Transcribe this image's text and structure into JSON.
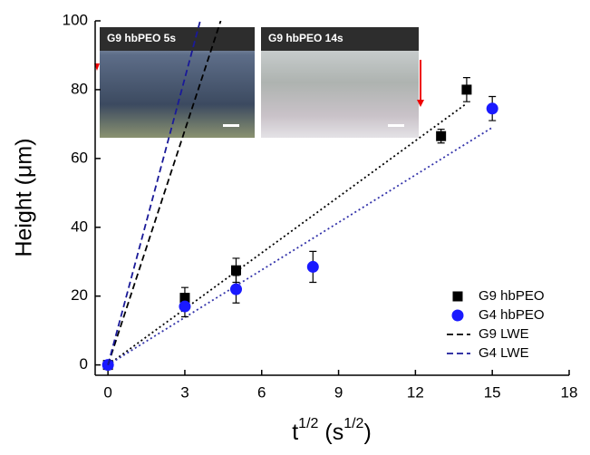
{
  "chart_data": {
    "type": "scatter",
    "x_label": [
      {
        "text": "t"
      },
      {
        "text": "1/2",
        "sup": true
      },
      {
        "text": " (s"
      },
      {
        "text": "1/2",
        "sup": true
      },
      {
        "text": ")"
      }
    ],
    "y_label": "Height (μm)",
    "xlim": [
      -0.5,
      18
    ],
    "ylim": [
      -3,
      100
    ],
    "xticks": [
      0,
      3,
      6,
      9,
      12,
      15,
      18
    ],
    "yticks": [
      0,
      20,
      40,
      60,
      80,
      100
    ],
    "series": [
      {
        "name": "G9 hbPEO",
        "color": "#000000",
        "marker": "square",
        "x": [
          0,
          3,
          5,
          13,
          14
        ],
        "values": [
          0,
          19.5,
          27.5,
          66.5,
          80
        ],
        "errors": [
          1,
          3,
          3.5,
          2,
          3.5
        ]
      },
      {
        "name": "G4 hbPEO",
        "color": "#1a1aff",
        "marker": "circle",
        "x": [
          0,
          3,
          5,
          8,
          15
        ],
        "values": [
          0,
          17,
          22,
          28.5,
          74.5
        ],
        "errors": [
          1,
          3,
          4,
          4.5,
          3.5
        ]
      },
      {
        "name": "G9 LWE",
        "color": "#000000",
        "marker": "dash",
        "x": [
          0,
          4.4
        ],
        "values": [
          0,
          100
        ]
      },
      {
        "name": "G4 LWE",
        "color": "#1a1a99",
        "marker": "dash",
        "x": [
          0,
          3.6
        ],
        "values": [
          0,
          100
        ]
      }
    ],
    "fit_lines": [
      {
        "color": "#000000",
        "x": [
          0,
          14
        ],
        "values": [
          0,
          76
        ]
      },
      {
        "color": "#3333aa",
        "x": [
          0,
          15
        ],
        "values": [
          0,
          69
        ]
      }
    ],
    "insets": [
      {
        "label": "G9 hbPEO 5s"
      },
      {
        "label": "G9 hbPEO 14s"
      }
    ]
  }
}
